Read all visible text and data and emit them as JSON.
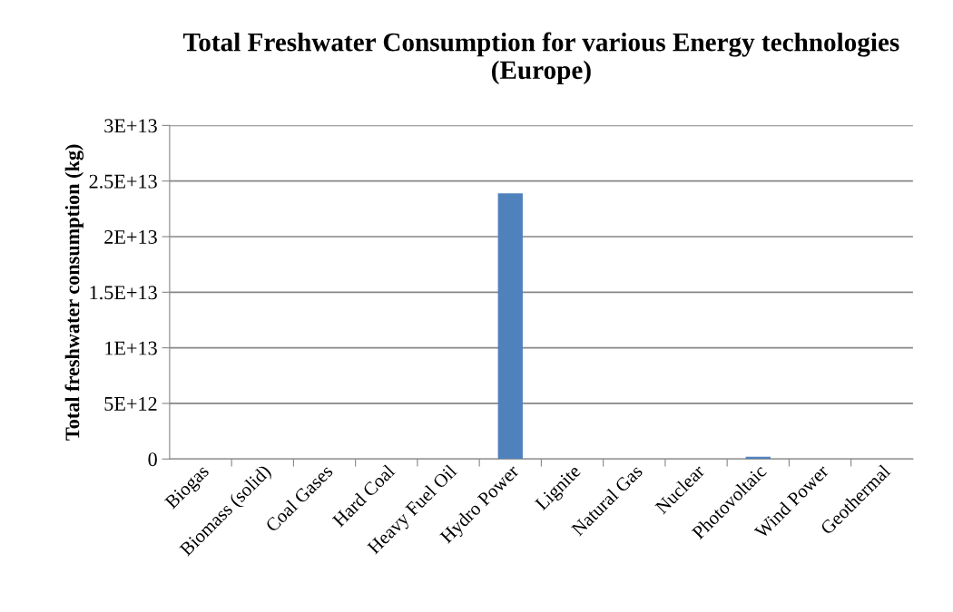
{
  "chart_data": {
    "type": "bar",
    "title": "Total Freshwater Consumption for various Energy technologies (Europe)",
    "ylabel": "Total freshwater consumption (kg)",
    "categories": [
      "Biogas",
      "Biomass (solid)",
      "Coal Gases",
      "Hard Coal",
      "Heavy Fuel Oil",
      "Hydro Power",
      "Lignite",
      "Natural Gas",
      "Nuclear",
      "Photovoltaic",
      "Wind Power",
      "Geothermal"
    ],
    "values": [
      0,
      0,
      0,
      0,
      0,
      23900000000000.0,
      0,
      0,
      0,
      200000000000.0,
      0,
      0
    ],
    "color": "#4f81bd",
    "ylim": [
      0,
      30000000000000.0
    ],
    "yticks": [
      0,
      {
        "value": 5000000000000.0,
        "label": "5E+12"
      },
      {
        "value": 10000000000000.0,
        "label": "1E+13"
      },
      {
        "value": 15000000000000.0,
        "label": "1.5E+13"
      },
      {
        "value": 20000000000000.0,
        "label": "2E+13"
      },
      {
        "value": 25000000000000.0,
        "label": "2.5E+13"
      },
      {
        "value": 30000000000000.0,
        "label": "3E+13"
      }
    ],
    "grid": "y",
    "legend": false
  }
}
